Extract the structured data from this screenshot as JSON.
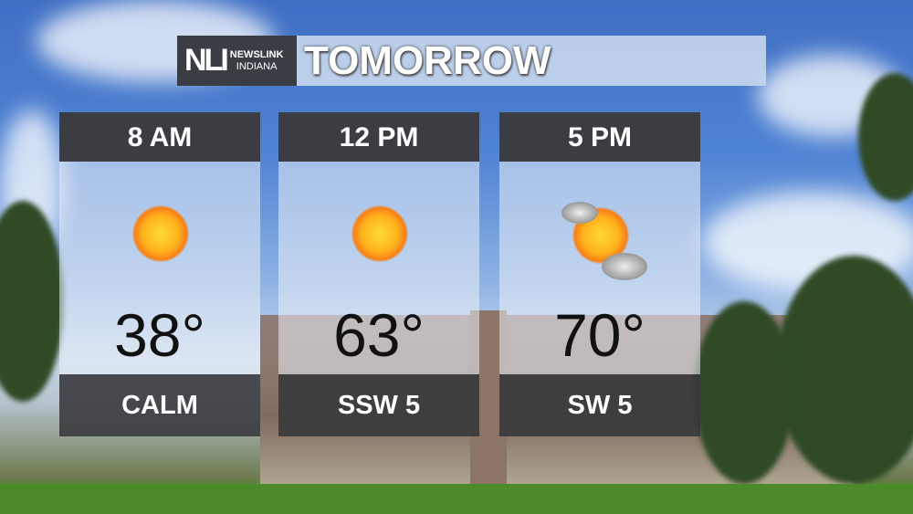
{
  "header": {
    "logo_mark": "NLI",
    "logo_line1": "NEWSLINK",
    "logo_line2": "INDIANA",
    "title": "TOMORROW"
  },
  "panels": [
    {
      "time": "8 AM",
      "icon": "sun-icon",
      "temp": "38°",
      "wind": "CALM"
    },
    {
      "time": "12 PM",
      "icon": "sun-icon",
      "temp": "63°",
      "wind": "SSW 5"
    },
    {
      "time": "5 PM",
      "icon": "sun-with-clouds-icon",
      "temp": "70°",
      "wind": "SW 5"
    }
  ]
}
